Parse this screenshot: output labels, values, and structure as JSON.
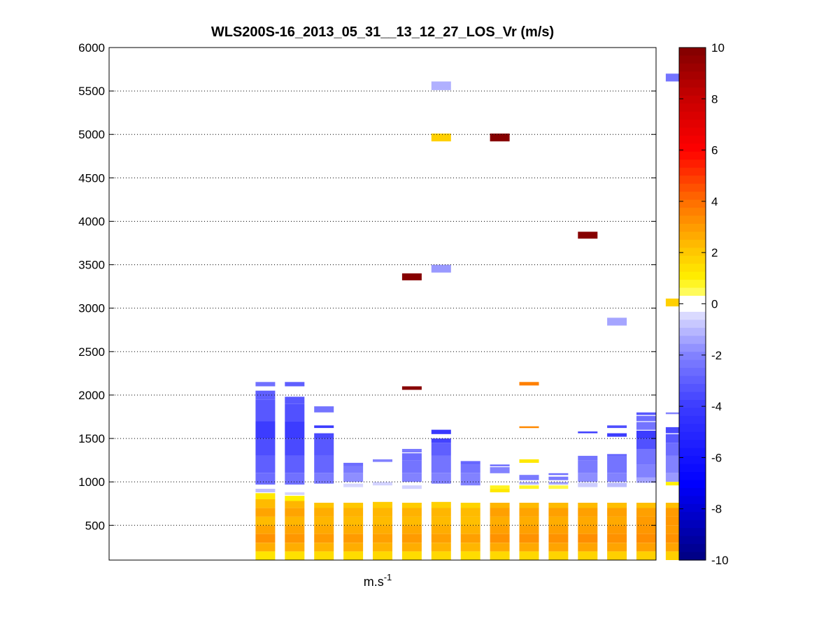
{
  "chart_data": {
    "type": "heatmap",
    "title": "WLS200S-16_2013_05_31__13_12_27_LOS_Vr (m/s)",
    "xlabel": "m.s",
    "xlabel_superscript": "-1",
    "ylabel": "",
    "ylim": [
      100,
      6000
    ],
    "yticks": [
      500,
      1000,
      1500,
      2000,
      2500,
      3000,
      3500,
      4000,
      4500,
      5000,
      5500,
      6000
    ],
    "xlim": [
      0,
      28
    ],
    "grid": "y-dotted",
    "colorbar": {
      "label": "",
      "range": [
        -10,
        10
      ],
      "ticks": [
        -10,
        -8,
        -6,
        -4,
        -2,
        0,
        2,
        4,
        6,
        8,
        10
      ]
    },
    "profiles": [
      {
        "x": 8,
        "cells": [
          [
            2100,
            2150,
            -2.5
          ],
          [
            1950,
            2050,
            -3.0
          ],
          [
            1700,
            1950,
            -3.2
          ],
          [
            1500,
            1700,
            -4.0
          ],
          [
            1300,
            1500,
            -3.5
          ],
          [
            1100,
            1300,
            -3.0
          ],
          [
            970,
            1100,
            -2.6
          ],
          [
            880,
            920,
            -1.0
          ],
          [
            800,
            870,
            1.2
          ],
          [
            700,
            800,
            2.3
          ],
          [
            600,
            700,
            2.8
          ],
          [
            500,
            600,
            2.3
          ],
          [
            400,
            500,
            2.8
          ],
          [
            300,
            400,
            3.2
          ],
          [
            200,
            300,
            2.6
          ],
          [
            100,
            200,
            1.3
          ]
        ]
      },
      {
        "x": 9.5,
        "cells": [
          [
            2100,
            2150,
            -3.0
          ],
          [
            1900,
            1980,
            -3.2
          ],
          [
            1700,
            1900,
            -3.4
          ],
          [
            1500,
            1700,
            -4.0
          ],
          [
            1300,
            1500,
            -3.6
          ],
          [
            1100,
            1300,
            -3.0
          ],
          [
            970,
            1100,
            -2.5
          ],
          [
            850,
            880,
            -0.6
          ],
          [
            780,
            840,
            1.0
          ],
          [
            700,
            780,
            2.4
          ],
          [
            600,
            700,
            2.8
          ],
          [
            500,
            600,
            2.4
          ],
          [
            400,
            500,
            2.8
          ],
          [
            300,
            400,
            3.1
          ],
          [
            200,
            300,
            2.6
          ],
          [
            100,
            200,
            1.4
          ]
        ]
      },
      {
        "x": 11,
        "cells": [
          [
            1800,
            1870,
            -2.4
          ],
          [
            1620,
            1650,
            -4.0
          ],
          [
            1500,
            1560,
            -3.6
          ],
          [
            1300,
            1500,
            -3.2
          ],
          [
            1100,
            1300,
            -2.8
          ],
          [
            980,
            1100,
            -2.2
          ],
          [
            700,
            760,
            2.1
          ],
          [
            600,
            700,
            2.6
          ],
          [
            500,
            600,
            2.4
          ],
          [
            400,
            500,
            2.7
          ],
          [
            300,
            400,
            3.0
          ],
          [
            200,
            300,
            2.5
          ],
          [
            100,
            200,
            1.5
          ]
        ]
      },
      {
        "x": 12.5,
        "cells": [
          [
            1180,
            1220,
            -2.6
          ],
          [
            1100,
            1180,
            -2.2
          ],
          [
            1000,
            1100,
            -1.8
          ],
          [
            940,
            980,
            -0.5
          ],
          [
            700,
            760,
            2.0
          ],
          [
            600,
            700,
            2.5
          ],
          [
            500,
            600,
            2.3
          ],
          [
            400,
            500,
            2.6
          ],
          [
            300,
            400,
            3.0
          ],
          [
            200,
            300,
            2.6
          ],
          [
            100,
            200,
            1.5
          ]
        ]
      },
      {
        "x": 14,
        "cells": [
          [
            1230,
            1260,
            -2.0
          ],
          [
            960,
            1000,
            -0.6
          ],
          [
            700,
            770,
            1.9
          ],
          [
            600,
            700,
            2.4
          ],
          [
            500,
            600,
            2.3
          ],
          [
            400,
            500,
            2.6
          ],
          [
            300,
            400,
            2.9
          ],
          [
            200,
            300,
            2.5
          ],
          [
            100,
            200,
            1.6
          ]
        ]
      },
      {
        "x": 15.5,
        "cells": [
          [
            3320,
            3400,
            9.8
          ],
          [
            2060,
            2100,
            9.8
          ],
          [
            1340,
            1380,
            -2.2
          ],
          [
            1250,
            1330,
            -2.6
          ],
          [
            1100,
            1250,
            -2.4
          ],
          [
            1000,
            1100,
            -2.0
          ],
          [
            920,
            960,
            -0.6
          ],
          [
            700,
            760,
            1.9
          ],
          [
            600,
            700,
            2.5
          ],
          [
            500,
            600,
            2.3
          ],
          [
            400,
            500,
            2.7
          ],
          [
            300,
            400,
            3.0
          ],
          [
            200,
            300,
            2.6
          ],
          [
            100,
            200,
            1.5
          ]
        ]
      },
      {
        "x": 17,
        "cells": [
          [
            5510,
            5610,
            -1.2
          ],
          [
            4920,
            5010,
            1.8
          ],
          [
            3410,
            3500,
            -1.6
          ],
          [
            1550,
            1600,
            -4.2
          ],
          [
            1450,
            1500,
            -3.8
          ],
          [
            1300,
            1450,
            -3.0
          ],
          [
            1100,
            1300,
            -2.4
          ],
          [
            980,
            1100,
            -2.0
          ],
          [
            700,
            770,
            1.8
          ],
          [
            600,
            700,
            2.4
          ],
          [
            500,
            600,
            2.3
          ],
          [
            400,
            500,
            2.6
          ],
          [
            300,
            400,
            2.9
          ],
          [
            200,
            300,
            2.5
          ],
          [
            100,
            200,
            1.6
          ]
        ]
      },
      {
        "x": 18.5,
        "cells": [
          [
            1200,
            1240,
            -2.8
          ],
          [
            1100,
            1200,
            -2.4
          ],
          [
            960,
            1100,
            -2.0
          ],
          [
            700,
            760,
            1.7
          ],
          [
            600,
            700,
            2.3
          ],
          [
            500,
            600,
            2.2
          ],
          [
            400,
            500,
            2.5
          ],
          [
            300,
            400,
            2.9
          ],
          [
            200,
            300,
            2.4
          ],
          [
            100,
            200,
            1.5
          ]
        ]
      },
      {
        "x": 20,
        "cells": [
          [
            4920,
            5010,
            9.8
          ],
          [
            1180,
            1200,
            -2.6
          ],
          [
            1100,
            1170,
            -2.0
          ],
          [
            920,
            960,
            0.8
          ],
          [
            880,
            920,
            1.2
          ],
          [
            700,
            760,
            2.4
          ],
          [
            600,
            700,
            2.9
          ],
          [
            500,
            600,
            2.6
          ],
          [
            400,
            500,
            2.9
          ],
          [
            300,
            400,
            3.2
          ],
          [
            200,
            300,
            2.7
          ],
          [
            100,
            200,
            1.6
          ]
        ]
      },
      {
        "x": 21.5,
        "cells": [
          [
            2110,
            2150,
            3.6
          ],
          [
            1620,
            1640,
            3.4
          ],
          [
            1220,
            1260,
            1.2
          ],
          [
            1020,
            1080,
            -2.2
          ],
          [
            970,
            1000,
            -1.2
          ],
          [
            920,
            960,
            0.8
          ],
          [
            700,
            760,
            2.3
          ],
          [
            600,
            700,
            2.8
          ],
          [
            500,
            600,
            2.6
          ],
          [
            400,
            500,
            2.9
          ],
          [
            300,
            400,
            3.2
          ],
          [
            200,
            300,
            2.7
          ],
          [
            100,
            200,
            1.6
          ]
        ]
      },
      {
        "x": 23,
        "cells": [
          [
            1080,
            1100,
            -2.6
          ],
          [
            1020,
            1060,
            -2.2
          ],
          [
            970,
            1000,
            -1.4
          ],
          [
            920,
            960,
            0.6
          ],
          [
            700,
            760,
            2.3
          ],
          [
            600,
            700,
            2.9
          ],
          [
            500,
            600,
            2.6
          ],
          [
            400,
            500,
            2.9
          ],
          [
            300,
            400,
            3.2
          ],
          [
            200,
            300,
            2.8
          ],
          [
            100,
            200,
            1.7
          ]
        ]
      },
      {
        "x": 24.5,
        "cells": [
          [
            3800,
            3880,
            9.8
          ],
          [
            1560,
            1580,
            -4.0
          ],
          [
            1250,
            1300,
            -2.4
          ],
          [
            1100,
            1250,
            -2.2
          ],
          [
            1000,
            1100,
            -1.8
          ],
          [
            940,
            990,
            -0.7
          ],
          [
            700,
            760,
            2.3
          ],
          [
            600,
            700,
            2.9
          ],
          [
            500,
            600,
            2.7
          ],
          [
            400,
            500,
            2.9
          ],
          [
            300,
            400,
            3.3
          ],
          [
            200,
            300,
            2.8
          ],
          [
            100,
            200,
            1.7
          ]
        ]
      },
      {
        "x": 26,
        "cells": [
          [
            2800,
            2890,
            -1.4
          ],
          [
            1620,
            1650,
            -3.5
          ],
          [
            1520,
            1560,
            -4.0
          ],
          [
            1300,
            1320,
            -3.0
          ],
          [
            1100,
            1300,
            -2.4
          ],
          [
            1000,
            1100,
            -2.0
          ],
          [
            940,
            990,
            -1.0
          ],
          [
            700,
            760,
            2.2
          ],
          [
            600,
            700,
            2.9
          ],
          [
            500,
            600,
            2.7
          ],
          [
            400,
            500,
            3.0
          ],
          [
            300,
            400,
            3.2
          ],
          [
            200,
            300,
            2.8
          ],
          [
            100,
            200,
            1.8
          ]
        ]
      },
      {
        "x": 27.5,
        "cells": [
          [
            1770,
            1800,
            -3.2
          ],
          [
            1700,
            1760,
            -2.6
          ],
          [
            1600,
            1690,
            -2.4
          ],
          [
            1500,
            1590,
            -4.0
          ],
          [
            1380,
            1500,
            -3.4
          ],
          [
            1200,
            1380,
            -2.4
          ],
          [
            1050,
            1200,
            -2.0
          ],
          [
            990,
            1050,
            -1.4
          ],
          [
            700,
            760,
            2.2
          ],
          [
            600,
            700,
            2.9
          ],
          [
            500,
            600,
            3.0
          ],
          [
            400,
            500,
            3.1
          ],
          [
            300,
            400,
            3.3
          ],
          [
            200,
            300,
            2.9
          ],
          [
            100,
            200,
            1.8
          ]
        ]
      },
      {
        "x": 29,
        "cells": [
          [
            5610,
            5700,
            -2.4
          ],
          [
            3020,
            3110,
            1.8
          ],
          [
            1780,
            1800,
            -2.0
          ],
          [
            1560,
            1630,
            -3.6
          ],
          [
            1450,
            1550,
            -3.2
          ],
          [
            1300,
            1450,
            -2.6
          ],
          [
            1100,
            1300,
            -2.0
          ],
          [
            1000,
            1100,
            -1.6
          ],
          [
            960,
            1000,
            1.0
          ],
          [
            700,
            760,
            2.2
          ],
          [
            600,
            700,
            3.0
          ],
          [
            500,
            600,
            3.1
          ],
          [
            400,
            500,
            3.0
          ],
          [
            300,
            400,
            3.2
          ],
          [
            200,
            300,
            2.8
          ],
          [
            100,
            200,
            1.8
          ]
        ]
      }
    ]
  }
}
